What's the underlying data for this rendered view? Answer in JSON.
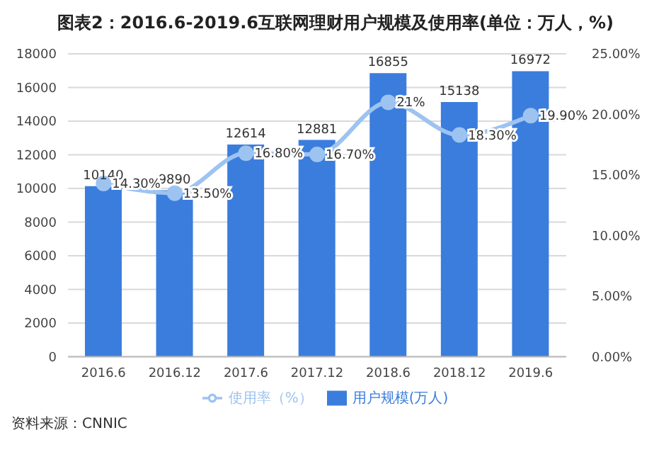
{
  "chart_data": {
    "type": "bar",
    "title": "图表2：2016.6-2019.6互联网理财用户规模及使用率(单位：万人，%)",
    "categories": [
      "2016.6",
      "2016.12",
      "2017.6",
      "2017.12",
      "2018.6",
      "2018.12",
      "2019.6"
    ],
    "series": [
      {
        "name": "用户规模(万人)",
        "color": "#3b7ddd",
        "values": [
          10140,
          9890,
          12614,
          12881,
          16855,
          15138,
          16972
        ],
        "value_labels": [
          "10140",
          "9890",
          "12614",
          "12881",
          "16855",
          "15138",
          "16972"
        ]
      },
      {
        "name": "使用率（%）",
        "type": "line",
        "axis": "y2",
        "color": "#9dc3f0",
        "values": [
          14.3,
          13.5,
          16.8,
          16.7,
          21,
          18.3,
          19.9
        ],
        "value_labels": [
          "14.30%",
          "13.50%",
          "16.80%",
          "16.70%",
          "21%",
          "18.30%",
          "19.90%"
        ]
      }
    ],
    "ylim": [
      0,
      18000
    ],
    "yticks": [
      0,
      2000,
      4000,
      6000,
      8000,
      10000,
      12000,
      14000,
      16000,
      18000
    ],
    "y2lim": [
      0,
      25
    ],
    "y2ticks": [
      {
        "value": 0,
        "label": "0.00%"
      },
      {
        "value": 5,
        "label": "5.00%"
      },
      {
        "value": 10,
        "label": "10.00%"
      },
      {
        "value": 15,
        "label": "15.00%"
      },
      {
        "value": 20,
        "label": "20.00%"
      },
      {
        "value": 25,
        "label": "25.00%"
      }
    ],
    "grid": "y",
    "legend": "bottom",
    "marker": "circle",
    "line_style": "solid",
    "annotations": [
      "资料来源：CNNIC"
    ]
  }
}
